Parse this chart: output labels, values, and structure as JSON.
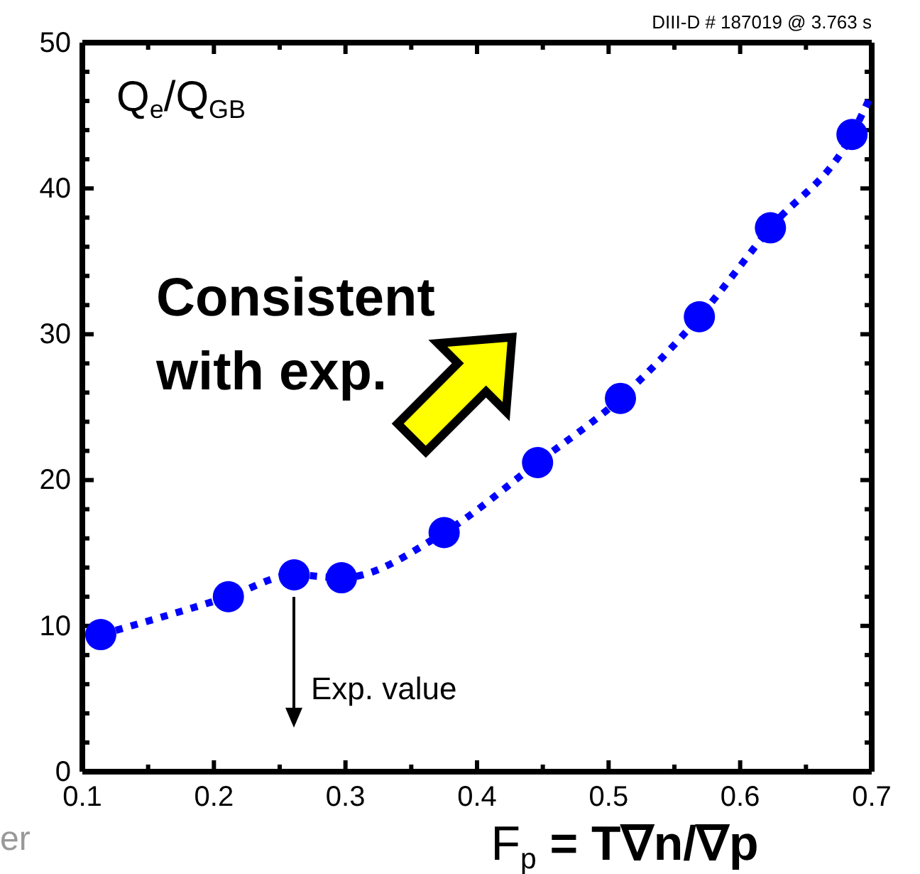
{
  "chart_data": {
    "type": "scatter",
    "ylabel": "Q$_{e}$/Q$_{GB}$",
    "xlabel": "F$_{p}$ = T∇n/∇p",
    "annotations": [
      "DIII-D # 187019 @ 3.763 s",
      "Consistent with exp.",
      "Exp. value",
      "er"
    ],
    "series": [
      {
        "type": "line",
        "color": "#0000ff",
        "line_style": "dotted",
        "marker": "none",
        "x": [
          0.114,
          0.211,
          0.261,
          0.297,
          0.375,
          0.446,
          0.509,
          0.569,
          0.623,
          0.685,
          0.7
        ],
        "values": [
          9.4,
          12.0,
          13.5,
          13.3,
          16.4,
          21.2,
          25.6,
          31.2,
          37.3,
          43.7,
          46.5
        ]
      },
      {
        "color": "#0000ff",
        "marker": "circle",
        "x": [
          0.114,
          0.211,
          0.261,
          0.297,
          0.375,
          0.446,
          0.509,
          0.569,
          0.623,
          0.685
        ],
        "values": [
          9.4,
          12.0,
          13.5,
          13.3,
          16.4,
          21.2,
          25.6,
          31.2,
          37.3,
          43.7
        ]
      }
    ],
    "xlim": [
      0.1,
      0.7
    ],
    "ylim": [
      0,
      50
    ],
    "xticks": [
      0.1,
      {
        "value": 0.15,
        "label": null
      },
      0.2,
      {
        "value": 0.25,
        "label": null
      },
      0.3,
      {
        "value": 0.35,
        "label": null
      },
      0.4,
      {
        "value": 0.45,
        "label": null
      },
      0.5,
      {
        "value": 0.55,
        "label": null
      },
      0.6,
      {
        "value": 0.65,
        "label": null
      },
      0.7
    ],
    "yticks": [
      0,
      {
        "value": 2,
        "label": null
      },
      {
        "value": 4,
        "label": null
      },
      {
        "value": 6,
        "label": null
      },
      {
        "value": 8,
        "label": null
      },
      10,
      {
        "value": 12,
        "label": null
      },
      {
        "value": 14,
        "label": null
      },
      {
        "value": 16,
        "label": null
      },
      {
        "value": 18,
        "label": null
      },
      20,
      {
        "value": 22,
        "label": null
      },
      {
        "value": 24,
        "label": null
      },
      {
        "value": 26,
        "label": null
      },
      {
        "value": 28,
        "label": null
      },
      30,
      {
        "value": 32,
        "label": null
      },
      {
        "value": 34,
        "label": null
      },
      {
        "value": 36,
        "label": null
      },
      {
        "value": 38,
        "label": null
      },
      40,
      {
        "value": 42,
        "label": null
      },
      {
        "value": 44,
        "label": null
      },
      {
        "value": 46,
        "label": null
      },
      {
        "value": 48,
        "label": null
      },
      50
    ],
    "grid": false
  }
}
